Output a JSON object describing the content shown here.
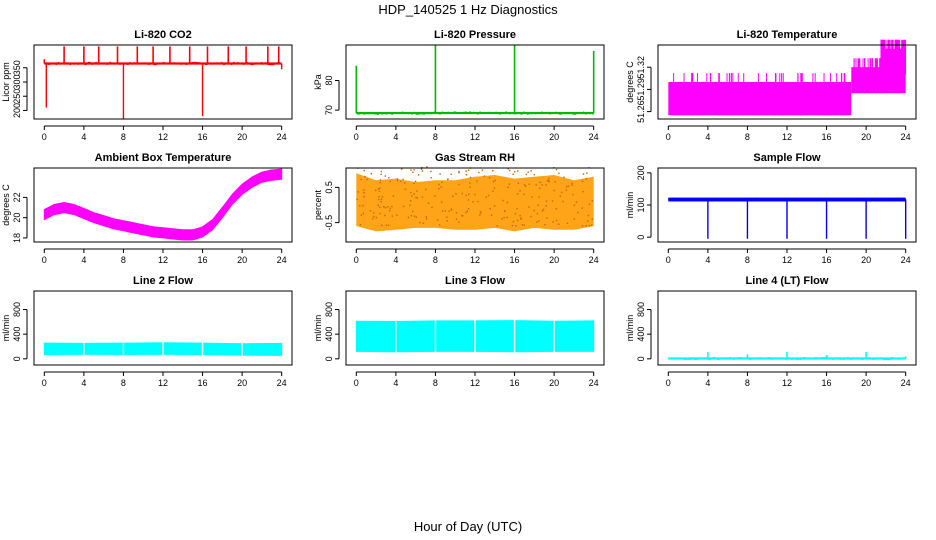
{
  "figure": {
    "title": "HDP_140525  1 Hz Diagnostics",
    "xlabel": "Hour of Day (UTC)"
  },
  "chart_data": [
    {
      "type": "line",
      "title": "Li-820 CO2",
      "ylabel": "Licor ppm",
      "color": "#ff0000",
      "xlim": [
        0,
        24
      ],
      "ylim": [
        170,
        430
      ],
      "x_ticks": [
        0,
        4,
        8,
        12,
        16,
        20,
        24
      ],
      "y_ticks": [
        200,
        250,
        300,
        350
      ],
      "baseline": [
        [
          0,
          365
        ],
        [
          24,
          365
        ]
      ],
      "spikes_up": [
        [
          0,
          380
        ],
        [
          2,
          425
        ],
        [
          4,
          425
        ],
        [
          5.5,
          425
        ],
        [
          7.4,
          425
        ],
        [
          9.4,
          425
        ],
        [
          11,
          425
        ],
        [
          12.7,
          425
        ],
        [
          14.7,
          425
        ],
        [
          16.5,
          425
        ],
        [
          18.6,
          425
        ],
        [
          20.4,
          425
        ],
        [
          22.6,
          425
        ],
        [
          23.7,
          425
        ]
      ],
      "spikes_down": [
        [
          0.2,
          210
        ],
        [
          8,
          170
        ],
        [
          16,
          180
        ],
        [
          24,
          345
        ]
      ]
    },
    {
      "type": "line",
      "title": "Li-820 Pressure",
      "ylabel": "kPa",
      "color": "#00bb00",
      "xlim": [
        0,
        24
      ],
      "ylim": [
        67,
        92
      ],
      "x_ticks": [
        0,
        4,
        8,
        12,
        16,
        20,
        24
      ],
      "y_ticks": [
        70,
        80
      ],
      "baseline": [
        [
          0,
          69
        ],
        [
          24,
          69
        ]
      ],
      "spikes_up": [
        [
          0,
          85
        ],
        [
          8,
          92
        ],
        [
          16,
          92
        ],
        [
          24,
          90
        ]
      ],
      "spikes_down": []
    },
    {
      "type": "line",
      "title": "Li-820 Temperature",
      "ylabel": "degrees C",
      "color": "#ff00ff",
      "xlim": [
        0,
        24
      ],
      "ylim": [
        51.25,
        51.35
      ],
      "x_ticks": [
        0,
        4,
        8,
        12,
        16,
        20,
        24
      ],
      "y_ticks": [
        51.26,
        51.29,
        51.32
      ],
      "bands": [
        {
          "x0": 0,
          "x1": 18.5,
          "y0": 51.255,
          "y1": 51.3
        },
        {
          "x0": 18.5,
          "x1": 24,
          "y0": 51.285,
          "y1": 51.32
        },
        {
          "x0": 21.5,
          "x1": 24,
          "y0": 51.31,
          "y1": 51.345
        }
      ]
    },
    {
      "type": "line",
      "title": "Ambient Box Temperature",
      "ylabel": "degrees C",
      "color": "#ff00ff",
      "xlim": [
        0,
        24
      ],
      "ylim": [
        17.6,
        24.9
      ],
      "x_ticks": [
        0,
        4,
        8,
        12,
        16,
        20,
        24
      ],
      "y_ticks": [
        18,
        20,
        22
      ],
      "x": [
        0,
        1,
        2,
        3,
        4,
        5,
        6,
        7,
        8,
        9,
        10,
        11,
        12,
        13,
        14,
        15,
        16,
        17,
        18,
        19,
        20,
        21,
        22,
        23,
        24
      ],
      "y": [
        20.3,
        20.8,
        21.0,
        20.8,
        20.4,
        20.0,
        19.7,
        19.4,
        19.2,
        19.0,
        18.8,
        18.6,
        18.5,
        18.4,
        18.3,
        18.3,
        18.6,
        19.3,
        20.5,
        21.8,
        22.8,
        23.5,
        24.0,
        24.2,
        24.3
      ],
      "band": 0.5
    },
    {
      "type": "line",
      "title": "Gas Stream RH",
      "ylabel": "percent",
      "color": "#ff9900",
      "xlim": [
        0,
        24
      ],
      "ylim": [
        -1.05,
        1.05
      ],
      "x_ticks": [
        0,
        4,
        8,
        12,
        16,
        20,
        24
      ],
      "y_ticks": [
        -0.5,
        0.5
      ],
      "x": [
        0,
        2,
        4,
        6,
        8,
        10,
        12,
        14,
        16,
        18,
        20,
        22,
        24
      ],
      "upper": [
        0.9,
        0.7,
        0.75,
        0.65,
        0.7,
        0.7,
        0.8,
        0.85,
        0.75,
        0.8,
        0.85,
        0.7,
        0.8
      ],
      "lower": [
        -0.6,
        -0.75,
        -0.7,
        -0.65,
        -0.65,
        -0.7,
        -0.7,
        -0.65,
        -0.75,
        -0.65,
        -0.7,
        -0.7,
        -0.6
      ]
    },
    {
      "type": "line",
      "title": "Sample Flow",
      "ylabel": "ml/min",
      "color": "#0000ff",
      "xlim": [
        0,
        24
      ],
      "ylim": [
        -15,
        215
      ],
      "x_ticks": [
        0,
        4,
        8,
        12,
        16,
        20,
        24
      ],
      "y_ticks": [
        0,
        100,
        200
      ],
      "baseline": [
        [
          0,
          117
        ],
        [
          24,
          117
        ]
      ],
      "band_half": 6,
      "spikes_down": [
        [
          4,
          -5
        ],
        [
          8,
          -5
        ],
        [
          12,
          -5
        ],
        [
          16,
          -5
        ],
        [
          20,
          -5
        ],
        [
          24,
          -5
        ]
      ]
    },
    {
      "type": "area",
      "title": "Line 2 Flow",
      "ylabel": "ml/min",
      "color": "#00ffff",
      "xlim": [
        0,
        24
      ],
      "ylim": [
        -100,
        1100
      ],
      "x_ticks": [
        0,
        4,
        8,
        12,
        16,
        20,
        24
      ],
      "y_ticks": [
        0,
        400,
        800
      ],
      "x": [
        0,
        4,
        8,
        12,
        16,
        20,
        24
      ],
      "upper": [
        255,
        250,
        255,
        260,
        255,
        245,
        250
      ],
      "lower": [
        65,
        75,
        70,
        75,
        65,
        60,
        55
      ],
      "gaps": [
        4,
        8,
        12,
        16,
        20
      ]
    },
    {
      "type": "area",
      "title": "Line 3 Flow",
      "ylabel": "ml/min",
      "color": "#00ffff",
      "xlim": [
        0,
        24
      ],
      "ylim": [
        -100,
        1100
      ],
      "x_ticks": [
        0,
        4,
        8,
        12,
        16,
        20,
        24
      ],
      "y_ticks": [
        0,
        400,
        800
      ],
      "x": [
        0,
        4,
        8,
        12,
        16,
        20,
        24
      ],
      "upper": [
        610,
        605,
        615,
        615,
        620,
        610,
        615
      ],
      "lower": [
        120,
        115,
        120,
        120,
        115,
        120,
        120
      ],
      "gaps": [
        4,
        8,
        12,
        16,
        20
      ]
    },
    {
      "type": "line",
      "title": "Line 4 (LT) Flow",
      "ylabel": "ml/min",
      "color": "#00ffff",
      "xlim": [
        0,
        24
      ],
      "ylim": [
        -100,
        1100
      ],
      "x_ticks": [
        0,
        4,
        8,
        12,
        16,
        20,
        24
      ],
      "y_ticks": [
        0,
        400,
        800
      ],
      "baseline": [
        [
          0,
          5
        ],
        [
          24,
          5
        ]
      ],
      "spikes_up": [
        [
          4,
          110
        ],
        [
          8,
          70
        ],
        [
          12,
          110
        ],
        [
          16,
          60
        ],
        [
          20,
          110
        ],
        [
          24,
          40
        ]
      ],
      "spikes_down": []
    }
  ]
}
